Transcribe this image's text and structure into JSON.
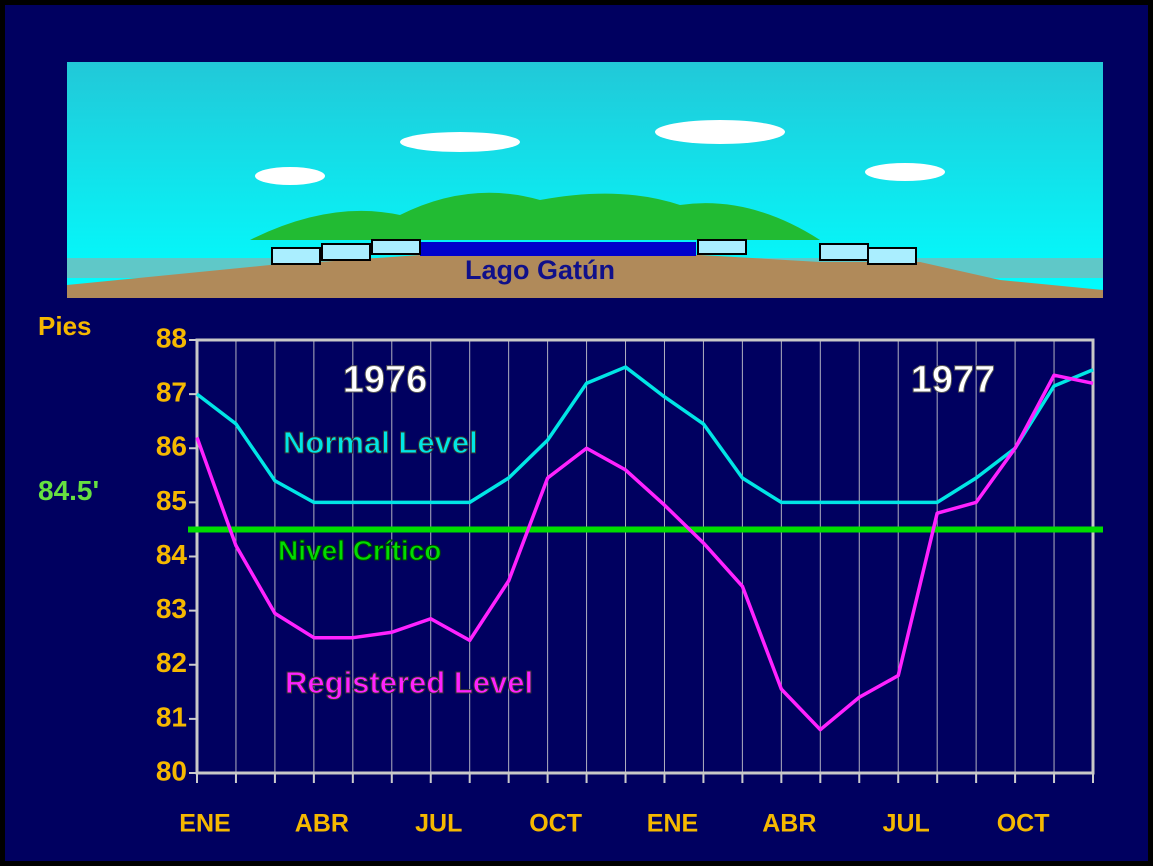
{
  "illustration": {
    "label": "Lago Gatún"
  },
  "chart_data": {
    "type": "line",
    "y_label": "Pies",
    "annotations": [
      "1976",
      "1977"
    ],
    "categories": [
      "ENE",
      null,
      null,
      "ABR",
      null,
      null,
      "JUL",
      null,
      null,
      "OCT",
      null,
      null,
      "ENE",
      null,
      null,
      "ABR",
      null,
      null,
      "JUL",
      null,
      null,
      "OCT",
      null,
      null
    ],
    "series": [
      {
        "name": "Normal Level",
        "color": "#00e5e5",
        "values": [
          87.0,
          86.45,
          85.4,
          85.0,
          85.0,
          85.0,
          85.0,
          85.0,
          85.45,
          86.15,
          87.2,
          87.5,
          86.95,
          86.45,
          85.45,
          85.0,
          85.0,
          85.0,
          85.0,
          85.0,
          85.45,
          86.0,
          87.15,
          87.45
        ]
      },
      {
        "name": "Registered Level",
        "color": "#ff22ff",
        "values": [
          86.2,
          84.2,
          82.95,
          82.5,
          82.5,
          82.6,
          82.85,
          82.45,
          83.55,
          85.45,
          86.0,
          85.6,
          84.95,
          84.25,
          83.45,
          81.55,
          80.8,
          81.4,
          81.8,
          84.8,
          85.0,
          86.0,
          87.35,
          87.2
        ]
      }
    ],
    "reference_line": {
      "value": 84.5,
      "label": "84.5'",
      "name": "Nivel Crítico",
      "color": "#00dd00"
    },
    "ylim": [
      80,
      88
    ],
    "yticks": [
      80,
      81,
      82,
      83,
      84,
      85,
      86,
      87,
      88
    ],
    "grid": true
  }
}
